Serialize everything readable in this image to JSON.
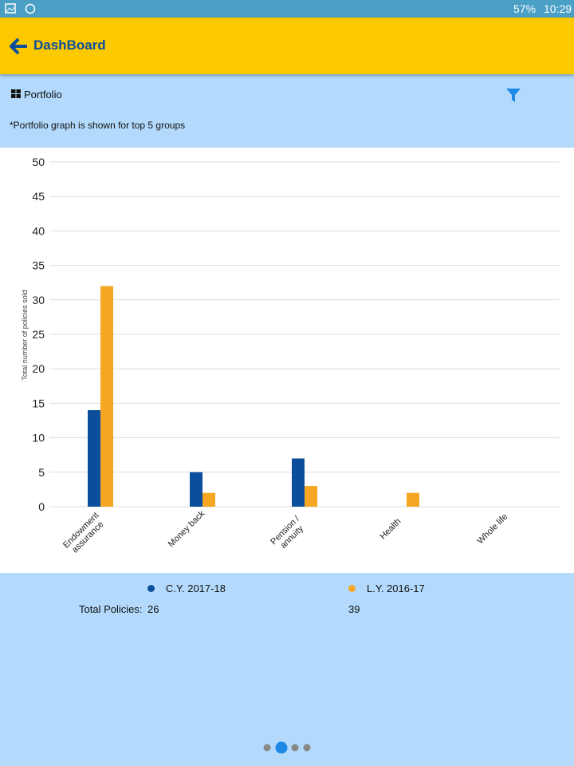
{
  "status_bar": {
    "battery": "57%",
    "time": "10:29"
  },
  "header": {
    "title": "DashBoard"
  },
  "section": {
    "title": "Portfolio",
    "note": "*Portfolio graph is shown for top 5 groups"
  },
  "chart_data": {
    "type": "bar",
    "y_label": "Total number of policies sold",
    "categories": [
      "Endowment assurance",
      "Money back",
      "Pension / annuity",
      "Health",
      "Whole life"
    ],
    "series": [
      {
        "name": "C.Y. 2017-18",
        "color": "#0b4f9c",
        "values": [
          14,
          5,
          7,
          0,
          0
        ]
      },
      {
        "name": "L.Y. 2016-17",
        "color": "#f5a623",
        "values": [
          32,
          2,
          3,
          2,
          0
        ]
      }
    ],
    "ylim": [
      0,
      50
    ],
    "yticks": [
      0,
      5,
      10,
      15,
      20,
      25,
      30,
      35,
      40,
      45,
      50
    ],
    "grid": true
  },
  "totals": {
    "label": "Total Policies:",
    "values": [
      26,
      39
    ]
  }
}
